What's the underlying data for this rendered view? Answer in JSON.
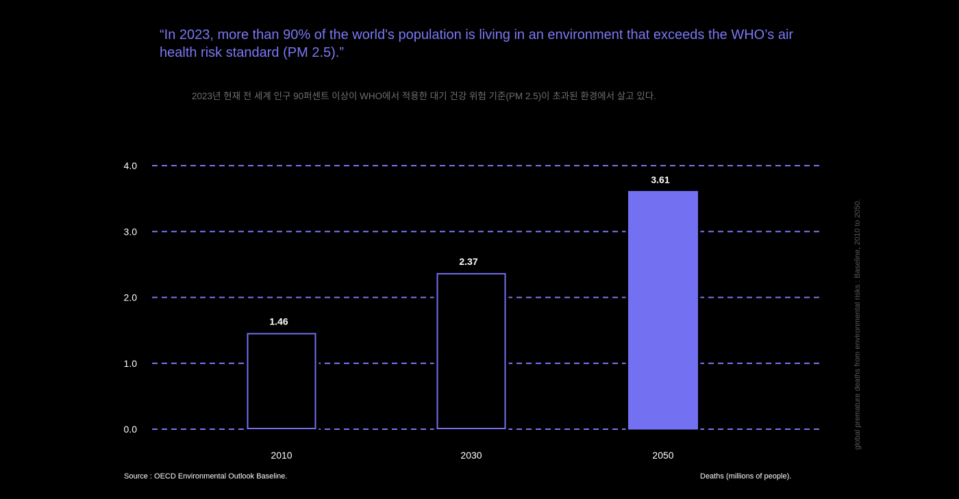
{
  "quote": "“In 2023, more than 90% of the world's population is living in an environment that exceeds the WHO’s air health risk standard (PM 2.5).”",
  "subtitle_korean": "2023년 현재 전 세계 인구 90퍼센트 이상이 WHO에서 적용한 대기 건강 위험 기준(PM 2.5)이 초과된 환경에서 살고 있다.",
  "side_note": "global premature deaths from environmental risks : Baseline, 2010 to 2050.",
  "source": "Source : OECD Environmental Outlook Baseline.",
  "units_note": "Deaths (millions of people).",
  "colors": {
    "background": "#000000",
    "accent": "#7370f2",
    "gridline": "#7b78f5",
    "text": "#ffffff"
  },
  "chart_data": {
    "type": "bar",
    "categories": [
      "2010",
      "2030",
      "2050"
    ],
    "values": [
      1.46,
      2.37,
      3.61
    ],
    "value_labels": [
      "1.46",
      "2.37",
      "3.61"
    ],
    "highlighted": [
      false,
      false,
      true
    ],
    "ylim": [
      0,
      4
    ],
    "yticks": [
      "0.0",
      "1.0",
      "2.0",
      "3.0",
      "4.0"
    ],
    "ytick_values": [
      0,
      1,
      2,
      3,
      4
    ],
    "grid": true,
    "grid_style": "dashed",
    "legend": "none"
  }
}
